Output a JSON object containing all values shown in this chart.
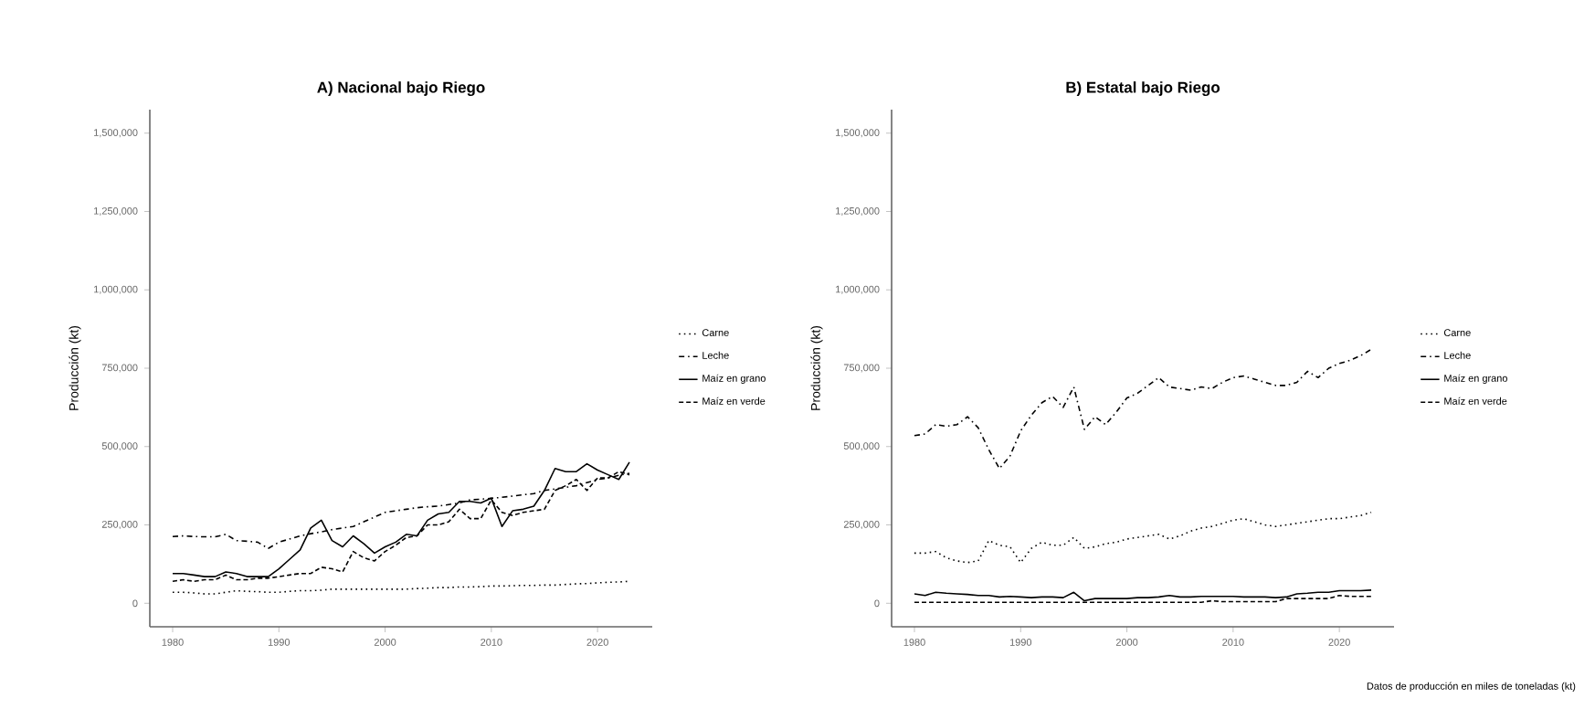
{
  "chart_data": [
    {
      "type": "line",
      "title": "A) Nacional bajo Riego",
      "ylabel": "Producción (kt)",
      "legend": "right",
      "x": [
        1980,
        1981,
        1982,
        1983,
        1984,
        1985,
        1986,
        1987,
        1988,
        1989,
        1990,
        1991,
        1992,
        1993,
        1994,
        1995,
        1996,
        1997,
        1998,
        1999,
        2000,
        2001,
        2002,
        2003,
        2004,
        2005,
        2006,
        2007,
        2008,
        2009,
        2010,
        2011,
        2012,
        2013,
        2014,
        2015,
        2016,
        2017,
        2018,
        2019,
        2020,
        2021,
        2022,
        2023
      ],
      "xlim": [
        1977.85,
        2025.15
      ],
      "xticks": [
        1980,
        1990,
        2000,
        2010,
        2020
      ],
      "ylim": [
        -75000,
        1575000
      ],
      "yticks": [
        0,
        {
          "value": 250000,
          "label": "250,000"
        },
        {
          "value": 500000,
          "label": "500,000"
        },
        {
          "value": 750000,
          "label": "750,000"
        },
        {
          "value": 1000000,
          "label": "1,000,000"
        },
        {
          "value": 1250000,
          "label": "1,250,000"
        },
        {
          "value": 1500000,
          "label": "1,500,000"
        }
      ],
      "series": [
        {
          "name": "Carne",
          "color": "#000000",
          "line_style": "dotted",
          "values": [
            35000,
            35000,
            33000,
            30000,
            30000,
            35000,
            40000,
            38000,
            37000,
            35000,
            35000,
            38000,
            40000,
            40000,
            42000,
            45000,
            45000,
            45000,
            45000,
            45000,
            45000,
            45000,
            45000,
            47000,
            48000,
            50000,
            50000,
            52000,
            52000,
            53000,
            55000,
            55000,
            56000,
            57000,
            57000,
            58000,
            58000,
            60000,
            62000,
            63000,
            65000,
            67000,
            68000,
            70000
          ]
        },
        {
          "name": "Leche",
          "color": "#000000",
          "line_style": "dashdot",
          "values": [
            213000,
            215000,
            213000,
            212000,
            212000,
            220000,
            200000,
            198000,
            195000,
            175000,
            195000,
            205000,
            215000,
            222000,
            228000,
            235000,
            240000,
            245000,
            260000,
            275000,
            290000,
            295000,
            300000,
            305000,
            308000,
            310000,
            315000,
            320000,
            330000,
            332000,
            335000,
            338000,
            342000,
            346000,
            350000,
            360000,
            365000,
            370000,
            375000,
            385000,
            395000,
            400000,
            408000,
            415000
          ]
        },
        {
          "name": "Maíz en grano",
          "color": "#000000",
          "line_style": "solid",
          "values": [
            95000,
            95000,
            90000,
            85000,
            85000,
            100000,
            95000,
            85000,
            85000,
            85000,
            110000,
            140000,
            170000,
            240000,
            265000,
            200000,
            180000,
            215000,
            190000,
            160000,
            180000,
            195000,
            220000,
            215000,
            265000,
            285000,
            290000,
            325000,
            325000,
            320000,
            335000,
            245000,
            295000,
            300000,
            310000,
            360000,
            430000,
            420000,
            420000,
            445000,
            425000,
            410000,
            395000,
            450000
          ]
        },
        {
          "name": "Maíz en verde",
          "color": "#000000",
          "line_style": "dashed",
          "values": [
            70000,
            75000,
            70000,
            75000,
            75000,
            90000,
            75000,
            75000,
            80000,
            80000,
            85000,
            90000,
            95000,
            95000,
            115000,
            110000,
            100000,
            165000,
            145000,
            135000,
            165000,
            185000,
            210000,
            215000,
            250000,
            250000,
            260000,
            300000,
            270000,
            270000,
            330000,
            290000,
            280000,
            290000,
            295000,
            300000,
            360000,
            375000,
            395000,
            360000,
            400000,
            400000,
            420000,
            410000
          ]
        }
      ]
    },
    {
      "type": "line",
      "title": "B) Estatal bajo Riego",
      "ylabel": "Producción (kt)",
      "legend": "right",
      "annotations": [
        "Datos de producción en miles de toneladas (kt)"
      ],
      "x": [
        1980,
        1981,
        1982,
        1983,
        1984,
        1985,
        1986,
        1987,
        1988,
        1989,
        1990,
        1991,
        1992,
        1993,
        1994,
        1995,
        1996,
        1997,
        1998,
        1999,
        2000,
        2001,
        2002,
        2003,
        2004,
        2005,
        2006,
        2007,
        2008,
        2009,
        2010,
        2011,
        2012,
        2013,
        2014,
        2015,
        2016,
        2017,
        2018,
        2019,
        2020,
        2021,
        2022,
        2023
      ],
      "xlim": [
        1977.85,
        2025.15
      ],
      "xticks": [
        1980,
        1990,
        2000,
        2010,
        2020
      ],
      "ylim": [
        -75000,
        1575000
      ],
      "yticks": [
        0,
        {
          "value": 250000,
          "label": "250,000"
        },
        {
          "value": 500000,
          "label": "500,000"
        },
        {
          "value": 750000,
          "label": "750,000"
        },
        {
          "value": 1000000,
          "label": "1,000,000"
        },
        {
          "value": 1250000,
          "label": "1,250,000"
        },
        {
          "value": 1500000,
          "label": "1,500,000"
        }
      ],
      "series": [
        {
          "name": "Carne",
          "color": "#000000",
          "line_style": "dotted",
          "values": [
            160000,
            160000,
            165000,
            145000,
            135000,
            130000,
            135000,
            200000,
            185000,
            180000,
            130000,
            175000,
            195000,
            185000,
            185000,
            210000,
            175000,
            180000,
            190000,
            195000,
            205000,
            210000,
            215000,
            220000,
            205000,
            215000,
            230000,
            240000,
            245000,
            255000,
            265000,
            270000,
            260000,
            250000,
            245000,
            250000,
            255000,
            260000,
            265000,
            270000,
            270000,
            275000,
            280000,
            290000
          ]
        },
        {
          "name": "Leche",
          "color": "#000000",
          "line_style": "dashdot",
          "values": [
            535000,
            540000,
            570000,
            565000,
            570000,
            595000,
            560000,
            490000,
            430000,
            470000,
            550000,
            600000,
            640000,
            660000,
            625000,
            690000,
            555000,
            595000,
            570000,
            610000,
            655000,
            670000,
            695000,
            720000,
            690000,
            685000,
            680000,
            690000,
            685000,
            705000,
            720000,
            725000,
            715000,
            705000,
            695000,
            695000,
            705000,
            740000,
            720000,
            750000,
            765000,
            775000,
            790000,
            810000
          ]
        },
        {
          "name": "Maíz en grano",
          "color": "#000000",
          "line_style": "solid",
          "values": [
            30000,
            25000,
            35000,
            32000,
            30000,
            28000,
            25000,
            25000,
            20000,
            22000,
            20000,
            18000,
            20000,
            20000,
            18000,
            35000,
            8000,
            15000,
            15000,
            15000,
            15000,
            18000,
            18000,
            20000,
            25000,
            20000,
            20000,
            22000,
            22000,
            22000,
            22000,
            20000,
            20000,
            20000,
            18000,
            20000,
            30000,
            32000,
            35000,
            35000,
            40000,
            40000,
            40000,
            42000
          ]
        },
        {
          "name": "Maíz en verde",
          "color": "#000000",
          "line_style": "dashed",
          "values": [
            3000,
            3000,
            3000,
            3000,
            3000,
            3000,
            3000,
            3000,
            3000,
            3000,
            3000,
            3000,
            3000,
            3000,
            3000,
            3000,
            3000,
            3000,
            3000,
            3000,
            3000,
            3000,
            3000,
            3000,
            3000,
            3000,
            3000,
            3000,
            8000,
            5000,
            5000,
            5000,
            5000,
            5000,
            5000,
            15000,
            15000,
            15000,
            15000,
            15000,
            25000,
            22000,
            22000,
            22000
          ]
        }
      ]
    }
  ]
}
